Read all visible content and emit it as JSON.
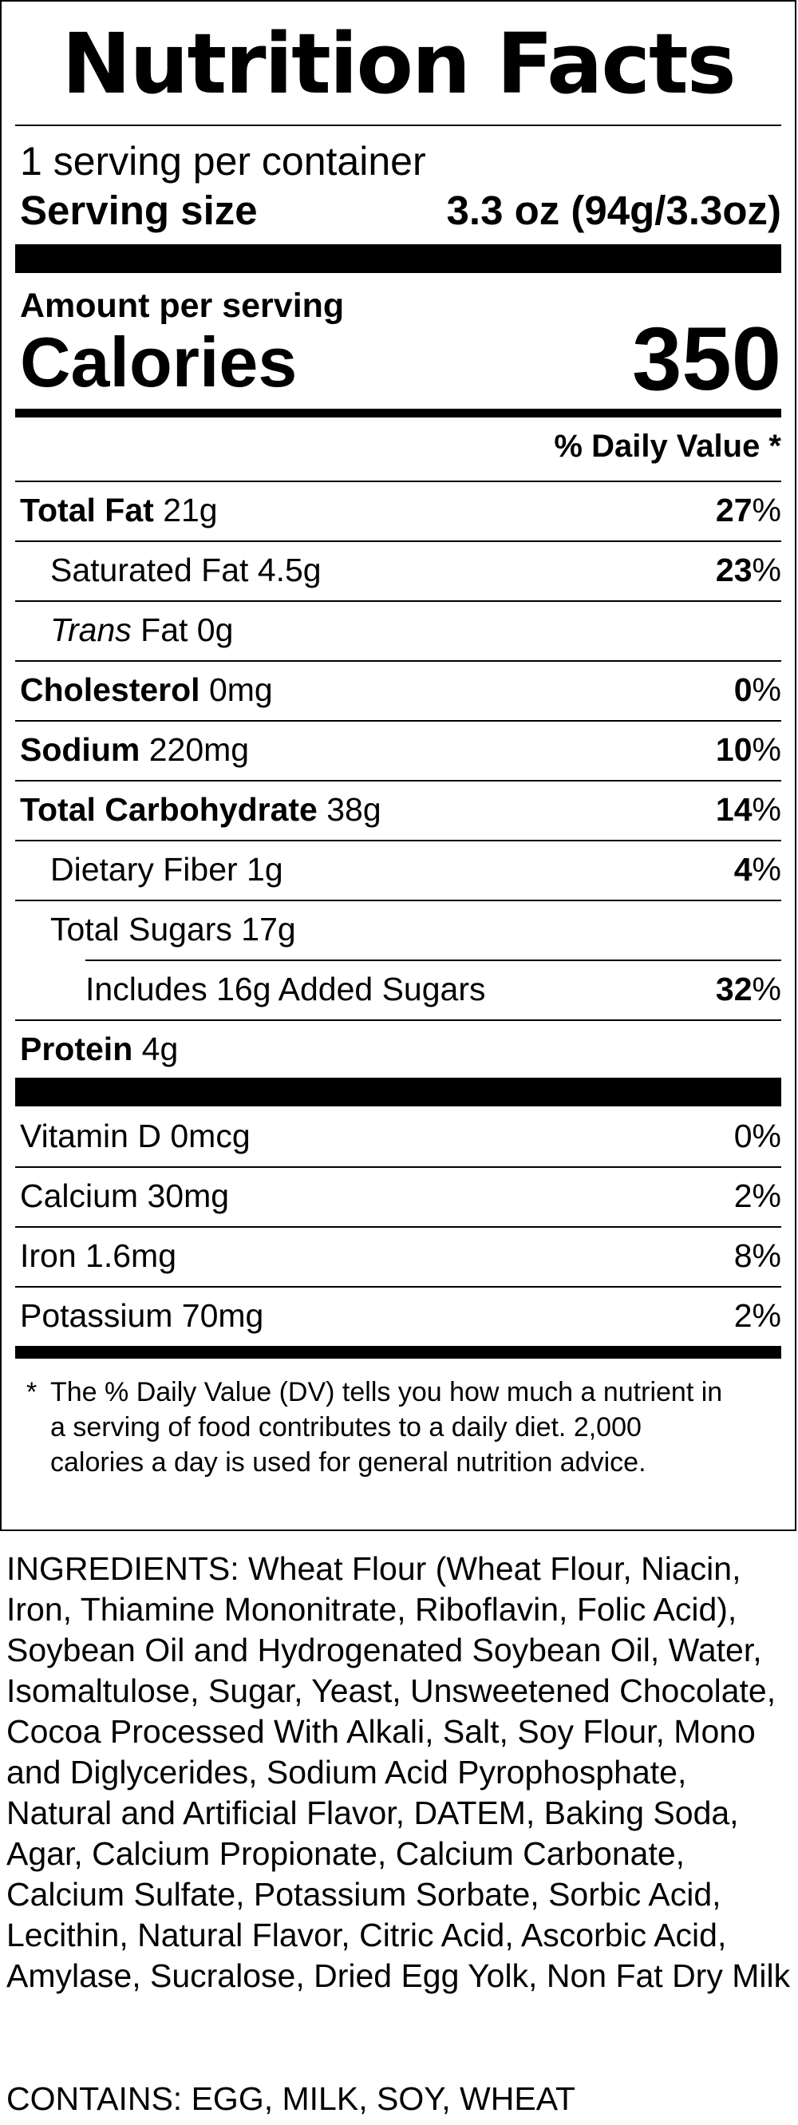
{
  "label": {
    "title": "Nutrition Facts",
    "servings_per_container": "1 serving per container",
    "serving_size_label": "Serving size",
    "serving_size_value": "3.3 oz (94g/3.3oz)",
    "amount_per_serving": "Amount per serving",
    "calories_label": "Calories",
    "calories_value": "350",
    "daily_value_header": "% Daily Value *",
    "nutrients": [
      {
        "name": "Total Fat",
        "amount": " 21g",
        "pct": "27",
        "pct_sign": "%"
      },
      {
        "name": "Saturated Fat 4.5g",
        "pct": "23",
        "pct_sign": "%"
      },
      {
        "name_italic": "Trans",
        "name_rest": " Fat 0g"
      },
      {
        "name": "Cholesterol",
        "amount": " 0mg",
        "pct": "0",
        "pct_sign": "%"
      },
      {
        "name": "Sodium",
        "amount": " 220mg",
        "pct": "10",
        "pct_sign": "%"
      },
      {
        "name": "Total Carbohydrate",
        "amount": " 38g",
        "pct": "14",
        "pct_sign": "%"
      },
      {
        "name": "Dietary Fiber 1g",
        "pct": "4",
        "pct_sign": "%"
      },
      {
        "name": "Total Sugars 17g"
      },
      {
        "name": "Includes 16g Added Sugars",
        "pct": "32",
        "pct_sign": "%"
      },
      {
        "name": "Protein",
        "amount": " 4g"
      }
    ],
    "vitamins": [
      {
        "name": "Vitamin D 0mcg",
        "pct": "0%"
      },
      {
        "name": "Calcium 30mg",
        "pct": "2%"
      },
      {
        "name": "Iron 1.6mg",
        "pct": "8%"
      },
      {
        "name": "Potassium 70mg",
        "pct": "2%"
      }
    ],
    "footnote_star": "*",
    "footnote": "The % Daily Value (DV) tells you how much a nutrient in a serving of food contributes to a daily diet. 2,000 calories a day is used for general nutrition advice."
  },
  "ingredients": "INGREDIENTS: Wheat Flour (Wheat Flour, Niacin, Iron, Thiamine Mononitrate, Riboflavin, Folic Acid), Soybean Oil and Hydrogenated Soybean Oil, Water, Isomaltulose, Sugar, Yeast, Unsweetened Chocolate, Cocoa Processed With Alkali, Salt, Soy Flour, Mono and Diglycerides, Sodium Acid Pyrophosphate, Natural and Artificial Flavor, DATEM, Baking Soda, Agar, Calcium Propionate, Calcium Carbonate, Calcium Sulfate, Potassium Sorbate, Sorbic Acid, Lecithin, Natural Flavor, Citric Acid, Ascorbic Acid, Amylase, Sucralose, Dried Egg Yolk, Non Fat Dry Milk",
  "contains": "CONTAINS: EGG, MILK, SOY, WHEAT"
}
